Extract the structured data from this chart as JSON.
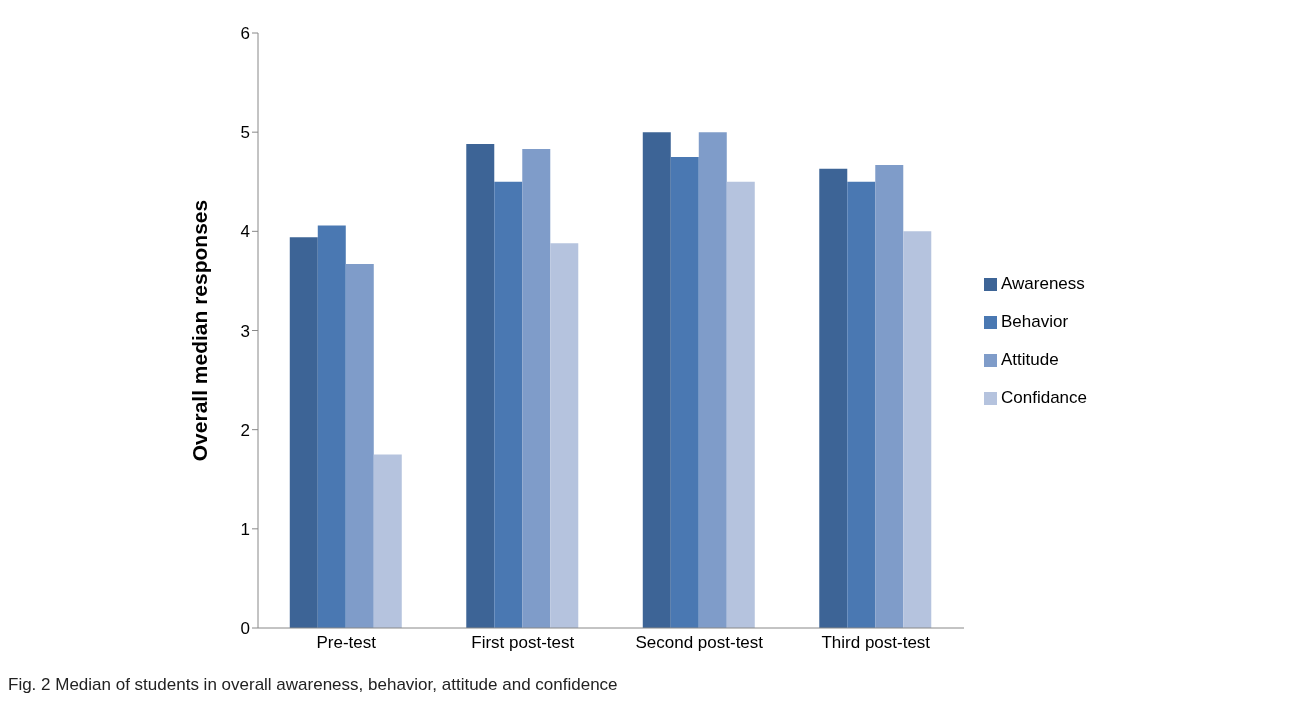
{
  "chart_data": {
    "type": "bar",
    "ylabel": "Overall median responses",
    "categories": [
      "Pre-test",
      "First post-test",
      "Second post-test",
      "Third post-test"
    ],
    "series": [
      {
        "name": "Awareness",
        "color": "#3d6496",
        "values": [
          3.94,
          4.88,
          5,
          4.63
        ]
      },
      {
        "name": "Behavior",
        "color": "#4a78b2",
        "values": [
          4.06,
          4.5,
          4.75,
          4.5
        ]
      },
      {
        "name": "Attitude",
        "color": "#7f9cc9",
        "values": [
          3.67,
          4.83,
          5,
          4.67
        ]
      },
      {
        "name": "Confidance",
        "color": "#b5c3de",
        "values": [
          1.75,
          3.88,
          4.5,
          4
        ]
      }
    ],
    "ylim": [
      0,
      6
    ],
    "yticks": [
      0,
      1,
      2,
      3,
      4,
      5,
      6
    ],
    "grid": false,
    "legend": "right",
    "annotations": [
      "Fig. 2 Median of students in overall awareness, behavior, attitude and confidence"
    ]
  }
}
